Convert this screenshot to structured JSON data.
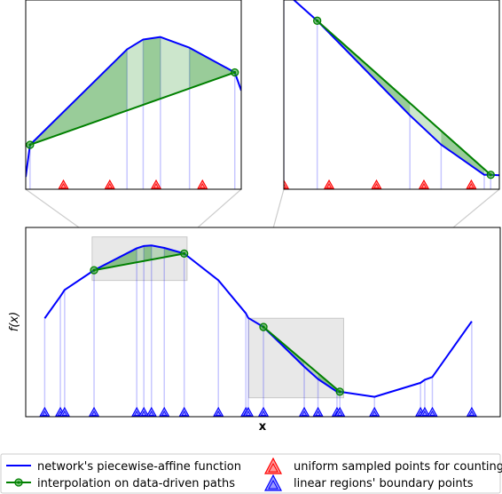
{
  "chart_data": [
    {
      "panel": "main",
      "type": "line",
      "xlabel": "x",
      "ylabel": "f(x)",
      "xlim": [
        0,
        100
      ],
      "ylim": [
        0,
        100
      ],
      "network_function": {
        "x": [
          4,
          7.3,
          8.2,
          14.4,
          23.4,
          24.9,
          26.5,
          29.2,
          33.4,
          40.6,
          46.4,
          46.9,
          50.1,
          58.7,
          61.6,
          65.6,
          66.2,
          73.5,
          83.2,
          84.1,
          85.7,
          94
        ],
        "y": [
          52,
          63.6,
          67,
          77.4,
          89,
          90.2,
          90.5,
          89.2,
          86.2,
          72.1,
          54.6,
          52.2,
          47.4,
          26.4,
          19.9,
          13.2,
          13.2,
          10.5,
          17.9,
          19.5,
          21,
          50.4
        ]
      },
      "interpolation_paths": [
        {
          "x": [
            14.4,
            33.4
          ],
          "y": [
            77.4,
            86.2
          ]
        },
        {
          "x": [
            50.1,
            66.2
          ],
          "y": [
            47.4,
            13.2
          ]
        }
      ],
      "boundary_points_x": [
        4,
        7.3,
        8.2,
        14.4,
        23.4,
        24.9,
        26.5,
        29.2,
        33.4,
        40.6,
        46.4,
        46.9,
        50.1,
        58.7,
        61.6,
        65.6,
        66.2,
        73.5,
        83.2,
        84.1,
        85.7,
        94
      ],
      "zoom_regions": [
        {
          "xlim": [
            14,
            34
          ],
          "ylim": [
            72,
            95
          ]
        },
        {
          "xlim": [
            47,
            67
          ],
          "ylim": [
            10,
            52
          ]
        }
      ]
    },
    {
      "panel": "inset-left",
      "type": "line",
      "xlim": [
        14,
        34
      ],
      "ylim": [
        72,
        95
      ],
      "network_function": {
        "x": [
          14,
          14.4,
          23.4,
          24.9,
          26.5,
          29.2,
          33.4,
          34
        ],
        "y": [
          73.5,
          77.4,
          89,
          90.2,
          90.5,
          89.2,
          86.2,
          84
        ]
      },
      "interpolation_path": {
        "x": [
          14.4,
          33.4
        ],
        "y": [
          77.4,
          86.2
        ]
      },
      "boundary_points_x": [
        14.4,
        23.4,
        24.9,
        26.5,
        29.2,
        33.4
      ],
      "uniform_sample_points_x": [
        17.5,
        21.8,
        26.1,
        30.4
      ]
    },
    {
      "panel": "inset-right",
      "type": "line",
      "xlim": [
        47,
        67
      ],
      "ylim": [
        10,
        52
      ],
      "network_function": {
        "x": [
          47,
          50.1,
          58.7,
          61.6,
          65.6,
          66.2,
          67
        ],
        "y": [
          54,
          47.4,
          26.4,
          19.9,
          13.2,
          13.2,
          13.1
        ]
      },
      "interpolation_path": {
        "x": [
          50.1,
          66.2
        ],
        "y": [
          47.4,
          13.2
        ]
      },
      "boundary_points_x": [
        47,
        50.1,
        58.7,
        61.6,
        65.6,
        66.2
      ],
      "uniform_sample_points_x": [
        47,
        51.2,
        55.6,
        60,
        64.4
      ]
    }
  ],
  "main_axes": {
    "xlabel": "x",
    "ylabel": "f(x)"
  },
  "legend": {
    "network": "network's piecewise-affine function",
    "interpolation": "interpolation on data-driven paths",
    "uniform": "uniform sampled points for counting",
    "boundary": "linear regions' boundary points"
  },
  "colors": {
    "network": "#0000ff",
    "interpolation": "#008000",
    "fill": "#008000",
    "uniform": "#ff0000",
    "boundary": "#0000ff",
    "zoom_box": "#cccccc"
  }
}
